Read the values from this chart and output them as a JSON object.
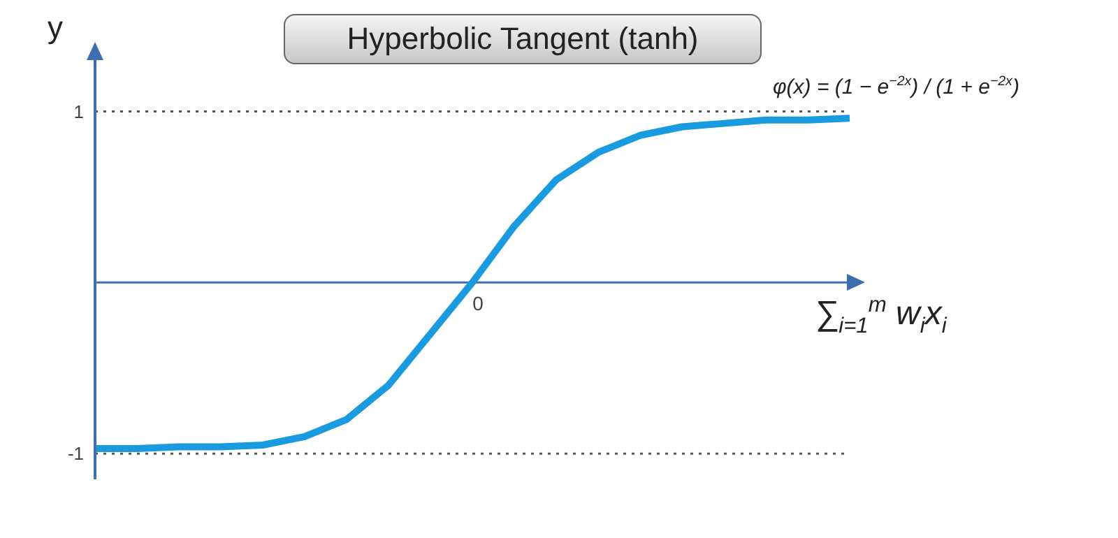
{
  "chart_data": {
    "type": "line",
    "title": "Hyperbolic Tangent (tanh)",
    "ylabel": "y",
    "xlabel": "∑$_{i=1}$$^{m}$ w$_{i}$x$_{i}$",
    "annotations": [
      "φ(x) = (1 − e$^{−2x}$) / (1 + e$^{−2x}$)"
    ],
    "categories": [
      null,
      null,
      null,
      null,
      null,
      null,
      null,
      null,
      null,
      "0",
      null,
      null,
      null,
      null,
      null,
      null,
      null,
      null,
      null
    ],
    "series": [
      {
        "color": "#1a9be0",
        "values": [
          -0.97,
          -0.97,
          -0.96,
          -0.96,
          -0.95,
          -0.9,
          -0.8,
          -0.6,
          -0.3,
          0,
          0.33,
          0.6,
          0.76,
          0.86,
          0.91,
          0.93,
          0.95,
          0.95,
          0.96
        ]
      }
    ],
    "ylim": [
      -1.15,
      1.3
    ],
    "yticks": [
      -1,
      1
    ],
    "ref_lines": [
      {
        "axis": "y",
        "value": 1,
        "color": "#555555",
        "line_style": "dotted"
      },
      {
        "axis": "y",
        "value": -1,
        "color": "#555555",
        "line_style": "dotted"
      },
      {
        "axis": "y",
        "value": 0,
        "color": "#3d6fb0",
        "line_style": "solid"
      }
    ],
    "grid": false,
    "legend": false,
    "marker": "none",
    "line_style": "solid"
  }
}
